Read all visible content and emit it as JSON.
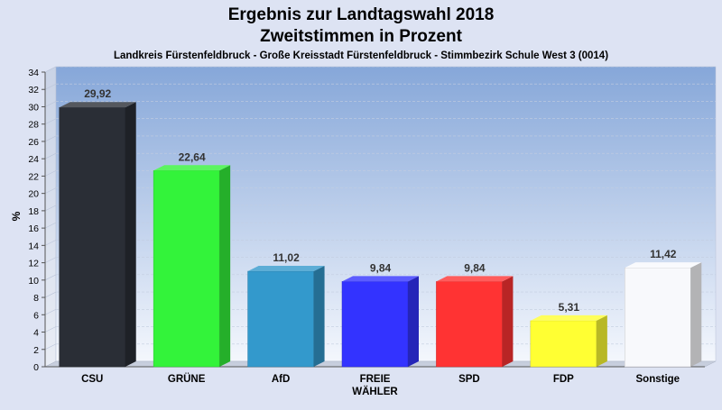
{
  "chart_data": {
    "type": "bar",
    "title": "Ergebnis zur Landtagswahl 2018",
    "title2": "Zweitstimmen in Prozent",
    "subtitle": "Landkreis Fürstenfeldbruck - Große Kreisstadt Fürstenfeldbruck - Stimmbezirk Schule West 3 (0014)",
    "ylabel": "%",
    "ylim": [
      0,
      34
    ],
    "ytick_step": 2,
    "grid": true,
    "categories": [
      "CSU",
      "GRÜNE",
      "AfD",
      "FREIE WÄHLER",
      "SPD",
      "FDP",
      "Sonstige"
    ],
    "category_lines": [
      [
        "CSU"
      ],
      [
        "GRÜNE"
      ],
      [
        "AfD"
      ],
      [
        "FREIE",
        "WÄHLER"
      ],
      [
        "SPD"
      ],
      [
        "FDP"
      ],
      [
        "Sonstige"
      ]
    ],
    "values": [
      29.92,
      22.64,
      11.02,
      9.84,
      9.84,
      5.31,
      11.42
    ],
    "value_labels": [
      "29,92",
      "22,64",
      "11,02",
      "9,84",
      "9,84",
      "5,31",
      "11,42"
    ],
    "colors": [
      "#2a2e36",
      "#33f33a",
      "#3399cc",
      "#3333ff",
      "#ff3333",
      "#ffff33",
      "#f8f9fc"
    ]
  }
}
